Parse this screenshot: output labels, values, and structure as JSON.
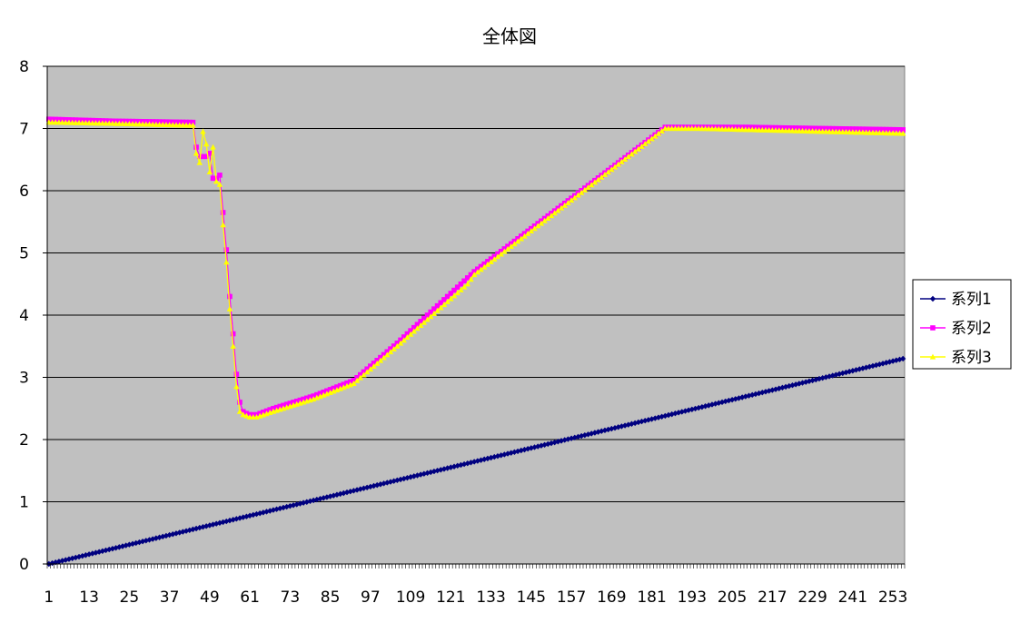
{
  "chart_data": {
    "type": "line",
    "title": "全体図",
    "ylim": [
      0,
      8
    ],
    "y_ticks": [
      "0",
      "1",
      "2",
      "3",
      "4",
      "5",
      "6",
      "7",
      "8"
    ],
    "x_count": 256,
    "x_tick_labels": [
      "1",
      "13",
      "25",
      "37",
      "49",
      "61",
      "73",
      "85",
      "97",
      "109",
      "121",
      "133",
      "145",
      "157",
      "169",
      "181",
      "193",
      "205",
      "217",
      "229",
      "241",
      "253"
    ],
    "grid": "horizontal",
    "legend_position": "right",
    "plot_background": "#c0c0c0",
    "series": [
      {
        "name": "系列1",
        "color": "#000080",
        "marker": "diamond",
        "keypoints": [
          [
            1,
            0.0
          ],
          [
            256,
            3.3
          ]
        ]
      },
      {
        "name": "系列2",
        "color": "#ff00ff",
        "marker": "square",
        "keypoints": [
          [
            1,
            7.15
          ],
          [
            20,
            7.12
          ],
          [
            44,
            7.1
          ],
          [
            45,
            6.7
          ],
          [
            46,
            6.55
          ],
          [
            47,
            6.55
          ],
          [
            48,
            6.55
          ],
          [
            49,
            6.6
          ],
          [
            50,
            6.2
          ],
          [
            51,
            6.2
          ],
          [
            52,
            6.25
          ],
          [
            53,
            5.65
          ],
          [
            54,
            5.05
          ],
          [
            55,
            4.3
          ],
          [
            56,
            3.7
          ],
          [
            57,
            3.05
          ],
          [
            58,
            2.6
          ],
          [
            59,
            2.45
          ],
          [
            60,
            2.42
          ],
          [
            61,
            2.4
          ],
          [
            63,
            2.4
          ],
          [
            68,
            2.5
          ],
          [
            80,
            2.7
          ],
          [
            92,
            2.95
          ],
          [
            105,
            3.55
          ],
          [
            126,
            4.6
          ],
          [
            128,
            4.7
          ],
          [
            185,
            7.02
          ],
          [
            195,
            7.02
          ],
          [
            210,
            7.02
          ],
          [
            256,
            6.98
          ]
        ]
      },
      {
        "name": "系列3",
        "color": "#ffff00",
        "marker": "triangle",
        "keypoints": [
          [
            1,
            7.1
          ],
          [
            20,
            7.08
          ],
          [
            44,
            7.05
          ],
          [
            45,
            6.6
          ],
          [
            46,
            6.45
          ],
          [
            47,
            6.95
          ],
          [
            48,
            6.75
          ],
          [
            49,
            6.3
          ],
          [
            50,
            6.7
          ],
          [
            51,
            6.15
          ],
          [
            52,
            6.1
          ],
          [
            53,
            5.45
          ],
          [
            54,
            4.85
          ],
          [
            55,
            4.1
          ],
          [
            56,
            3.5
          ],
          [
            57,
            2.85
          ],
          [
            58,
            2.45
          ],
          [
            59,
            2.4
          ],
          [
            60,
            2.38
          ],
          [
            61,
            2.36
          ],
          [
            63,
            2.36
          ],
          [
            68,
            2.45
          ],
          [
            80,
            2.65
          ],
          [
            92,
            2.9
          ],
          [
            105,
            3.5
          ],
          [
            126,
            4.5
          ],
          [
            128,
            4.65
          ],
          [
            185,
            7.0
          ],
          [
            195,
            7.0
          ],
          [
            210,
            6.98
          ],
          [
            256,
            6.92
          ]
        ]
      }
    ]
  }
}
